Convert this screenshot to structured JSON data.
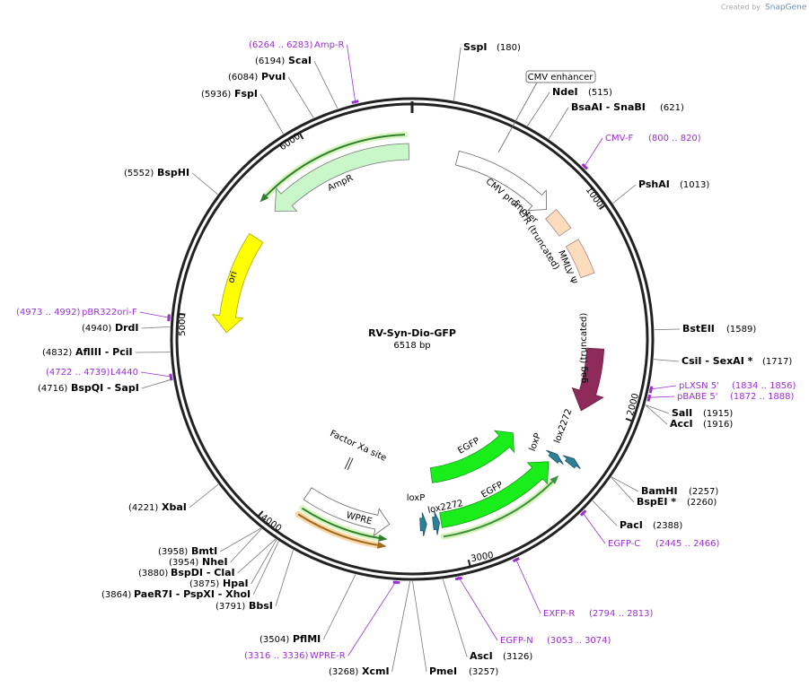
{
  "header": {
    "credit": "Created by",
    "brand": "SnapGene"
  },
  "plasmid": {
    "name": "RV-Syn-Dio-GFP",
    "length": "6518 bp"
  },
  "ticks": [
    "1000",
    "2000",
    "3000",
    "4000",
    "5000",
    "6000"
  ],
  "sites": [
    {
      "name": "SspI",
      "position": "(180)"
    },
    {
      "name": "NdeI",
      "position": "(515)"
    },
    {
      "name": "BsaAI - SnaBI",
      "position": "(621)"
    },
    {
      "name": "PshAI",
      "position": "(1013)"
    },
    {
      "name": "BstEII",
      "position": "(1589)"
    },
    {
      "name": "CsiI - SexAI *",
      "position": "(1717)"
    },
    {
      "name": "SalI",
      "position": "(1915)"
    },
    {
      "name": "AccI",
      "position": "(1916)"
    },
    {
      "name": "BamHI",
      "position": "(2257)"
    },
    {
      "name": "BspEI *",
      "position": "(2260)"
    },
    {
      "name": "PacI",
      "position": "(2388)"
    },
    {
      "name": "AscI",
      "position": "(3126)"
    },
    {
      "name": "PmeI",
      "position": "(3257)"
    },
    {
      "name": "XcmI",
      "position": "(3268)"
    },
    {
      "name": "PflMI",
      "position": "(3504)"
    },
    {
      "name": "BbsI",
      "position": "(3791)"
    },
    {
      "name": "PaeR7I - PspXI - XhoI",
      "position": "(3864)"
    },
    {
      "name": "HpaI",
      "position": "(3875)"
    },
    {
      "name": "BspDI - ClaI",
      "position": "(3880)"
    },
    {
      "name": "NheI",
      "position": "(3954)"
    },
    {
      "name": "BmtI",
      "position": "(3958)"
    },
    {
      "name": "XbaI",
      "position": "(4221)"
    },
    {
      "name": "BspQI - SapI",
      "position": "(4716)"
    },
    {
      "name": "AflIII - PciI",
      "position": "(4832)"
    },
    {
      "name": "DrdI",
      "position": "(4940)"
    },
    {
      "name": "BspHI",
      "position": "(5552)"
    },
    {
      "name": "FspI",
      "position": "(5936)"
    },
    {
      "name": "PvuI",
      "position": "(6084)"
    },
    {
      "name": "ScaI",
      "position": "(6194)"
    }
  ],
  "primers": [
    {
      "name": "Amp-R",
      "range": "(6264 .. 6283)"
    },
    {
      "name": "CMV-F",
      "range": "(800 .. 820)"
    },
    {
      "name": "pLXSN 5'",
      "range": "(1834 .. 1856)"
    },
    {
      "name": "pBABE 5'",
      "range": "(1872 .. 1888)"
    },
    {
      "name": "EGFP-C",
      "range": "(2445 .. 2466)"
    },
    {
      "name": "EXFP-R",
      "range": "(2794 .. 2813)"
    },
    {
      "name": "EGFP-N",
      "range": "(3053 .. 3074)"
    },
    {
      "name": "WPRE-R",
      "range": "(3316 .. 3336)"
    },
    {
      "name": "L4440",
      "range": "(4722 .. 4739)"
    },
    {
      "name": "pBR322ori-F",
      "range": "(4973 .. 4992)"
    }
  ],
  "features": [
    {
      "label": "CMV enhancer"
    },
    {
      "label": "CMV promoter"
    },
    {
      "label": "5' LTR (truncated)"
    },
    {
      "label": "MMLV Ψ"
    },
    {
      "label": "gag (truncated)"
    },
    {
      "label": "AmpR"
    },
    {
      "label": "ori"
    },
    {
      "label": "EGFP"
    },
    {
      "label": "loxP"
    },
    {
      "label": "lox2272"
    },
    {
      "label": "EGFP"
    },
    {
      "label": "loxP"
    },
    {
      "label": "lox2272"
    },
    {
      "label": "WPRE"
    },
    {
      "label": "Factor Xa site"
    }
  ]
}
